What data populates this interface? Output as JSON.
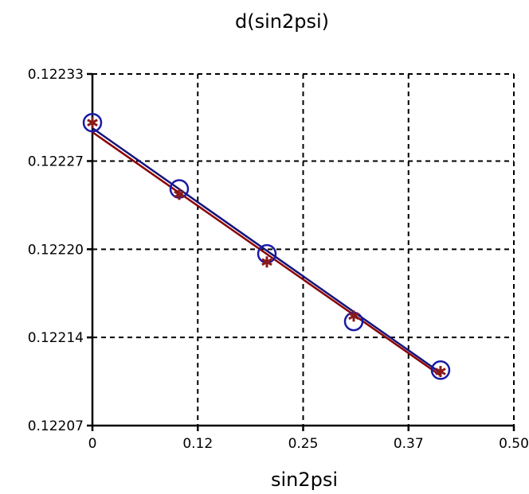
{
  "chart_data": {
    "type": "scatter",
    "title": "d(sin2psi)",
    "xlabel": "sin2psi",
    "ylabel": "",
    "xlim": [
      0,
      0.5
    ],
    "ylim": [
      0.12207,
      0.12233
    ],
    "grid": true,
    "x_ticks": [
      0,
      0.125,
      0.25,
      0.375,
      0.5
    ],
    "x_tick_labels": [
      "0",
      "0.12",
      "0.25",
      "0.37",
      "0.50"
    ],
    "y_ticks": [
      0.12207,
      0.1221352,
      0.1222004,
      0.1222656,
      0.12233
    ],
    "y_tick_labels": [
      "0.12207",
      "0.12214",
      "0.12220",
      "0.12227",
      "0.12233"
    ],
    "series": [
      {
        "marker": "circle",
        "color": "#1a1aa6",
        "x": [
          0.0,
          0.103,
          0.207,
          0.31,
          0.413
        ],
        "y": [
          0.122294,
          0.122245,
          0.122197,
          0.122147,
          0.122111
        ]
      },
      {
        "marker": "asterisk",
        "color": "#8b1a1a",
        "x": [
          0.0,
          0.103,
          0.207,
          0.31,
          0.413
        ],
        "y": [
          0.122294,
          0.122241,
          0.122191,
          0.122151,
          0.12211
        ]
      }
    ],
    "fit_lines": [
      {
        "color": "#14147a",
        "x": [
          0.0,
          0.413
        ],
        "y": [
          0.12229,
          0.122109
        ]
      },
      {
        "color": "#8b0000",
        "x": [
          0.0,
          0.413
        ],
        "y": [
          0.122287,
          0.122107
        ]
      }
    ]
  }
}
